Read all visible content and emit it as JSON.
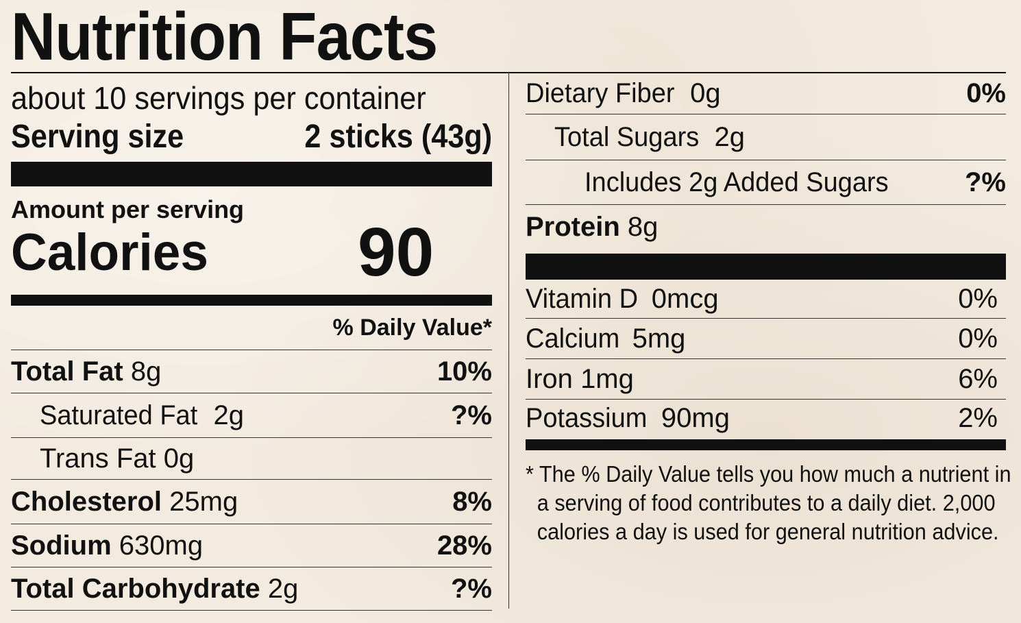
{
  "title": "Nutrition Facts",
  "servings_per_container": "about 10 servings per container",
  "serving_size": {
    "label": "Serving size",
    "value": "2 sticks (43g)"
  },
  "amount_per_serving": "Amount per serving",
  "calories": {
    "label": "Calories",
    "value": "90"
  },
  "daily_value_header": "% Daily Value*",
  "left_nutrients": [
    {
      "name": "Total Fat",
      "amount": "8g",
      "dv": "10%"
    },
    {
      "name": "Saturated Fat",
      "amount": "2g",
      "dv": "?%"
    },
    {
      "name": "Trans Fat",
      "amount": "0g",
      "dv": ""
    },
    {
      "name": "Cholesterol",
      "amount": "25mg",
      "dv": "8%"
    },
    {
      "name": "Sodium",
      "amount": "630mg",
      "dv": "28%"
    },
    {
      "name": "Total Carbohydrate",
      "amount": "2g",
      "dv": "?%"
    }
  ],
  "right_nutrients": [
    {
      "name": "Dietary Fiber",
      "amount": "0g",
      "dv": "0%"
    },
    {
      "name": "Total Sugars",
      "amount": "2g",
      "dv": ""
    },
    {
      "name": "Includes 2g Added Sugars",
      "amount": "",
      "dv": "?%"
    },
    {
      "name": "Protein",
      "amount": "8g",
      "dv": ""
    }
  ],
  "vitamins": [
    {
      "name": "Vitamin D",
      "amount": "0mcg",
      "dv": "0%"
    },
    {
      "name": "Calcium",
      "amount": "5mg",
      "dv": "0%"
    },
    {
      "name": "Iron",
      "amount": "1mg",
      "dv": "6%"
    },
    {
      "name": "Potassium",
      "amount": "90mg",
      "dv": "2%"
    }
  ],
  "footnote": "* The % Daily Value tells you how much a nutrient in a serving of food contributes to a daily diet. 2,000 calories a day is used for general nutrition advice."
}
